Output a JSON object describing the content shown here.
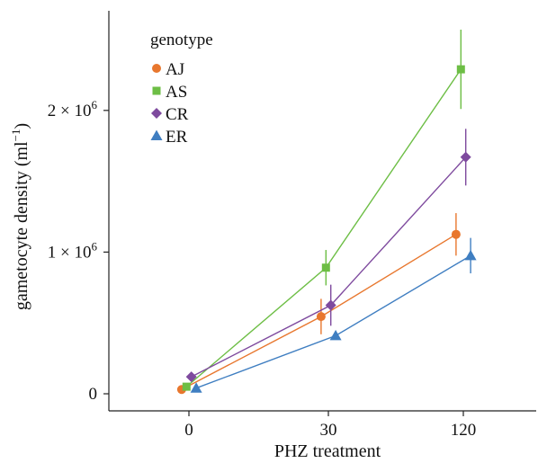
{
  "chart_data": {
    "type": "line",
    "xlabel": "PHZ treatment",
    "ylabel": "gametocyte density (ml",
    "ylabel_sup": "−1",
    "ylabel_close": ")",
    "categories": [
      "0",
      "30",
      "120"
    ],
    "ylim": [
      -100000,
      2700000
    ],
    "y_ticks": [
      {
        "value": 0,
        "label": "0"
      },
      {
        "value": 1000000,
        "label": "1 × 10",
        "sup": "6"
      },
      {
        "value": 2000000,
        "label": "2 × 10",
        "sup": "6"
      }
    ],
    "legend": {
      "title": "genotype",
      "placement": "top-left"
    },
    "grid": false,
    "series": [
      {
        "name": "AJ",
        "color": "#E8772E",
        "marker": "circle",
        "values": [
          30000,
          545000,
          1125000
        ],
        "err_low": [
          30000,
          420000,
          975000
        ],
        "err_high": [
          30000,
          670000,
          1275000
        ]
      },
      {
        "name": "AS",
        "color": "#6DBE45",
        "marker": "square",
        "values": [
          50000,
          890000,
          2290000
        ],
        "err_low": [
          50000,
          765000,
          2010000
        ],
        "err_high": [
          50000,
          1015000,
          2570000
        ]
      },
      {
        "name": "CR",
        "color": "#7E4A9E",
        "marker": "diamond",
        "values": [
          120000,
          625000,
          1670000
        ],
        "err_low": [
          120000,
          480000,
          1470000
        ],
        "err_high": [
          120000,
          770000,
          1870000
        ]
      },
      {
        "name": "ER",
        "color": "#3F7EC1",
        "marker": "triangle",
        "values": [
          40000,
          410000,
          975000
        ],
        "err_low": [
          40000,
          410000,
          850000
        ],
        "err_high": [
          40000,
          410000,
          1100000
        ]
      }
    ]
  }
}
